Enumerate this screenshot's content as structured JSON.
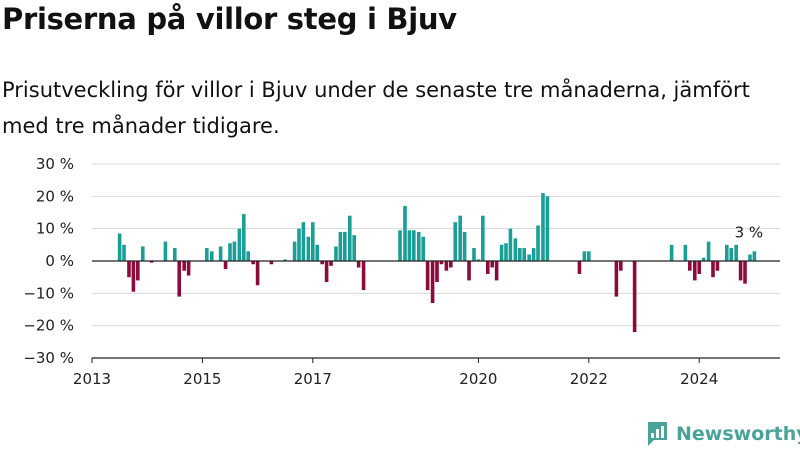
{
  "header": {
    "title": "Priserna på villor steg i Bjuv",
    "subtitle": "Prisutveckling för villor i Bjuv under de senaste tre månaderna, jämfört med tre månader tidigare."
  },
  "brand": {
    "name": "Newsworthy",
    "icon": "newsworthy-logo-icon",
    "color": "#4aa399"
  },
  "chart_data": {
    "type": "bar",
    "title": "",
    "xlabel": "",
    "ylabel": "",
    "x_axis": {
      "type": "time",
      "range": [
        2013.0,
        2025.7
      ],
      "tick_labels": [
        "2013",
        "2015",
        "2017",
        "2020",
        "2022",
        "2024"
      ],
      "tick_positions": [
        2013,
        2015,
        2017,
        2020,
        2022,
        2024
      ]
    },
    "y_axis": {
      "range": [
        -30,
        30
      ],
      "ticks": [
        -30,
        -20,
        -10,
        0,
        10,
        20,
        30
      ],
      "tick_labels": [
        "−30 %",
        "−20 %",
        "−10 %",
        "0 %",
        "10 %",
        "20 %",
        "30 %"
      ],
      "grid": true
    },
    "colors": {
      "positive": "#1a9e96",
      "negative": "#8c0a3c"
    },
    "annotation": {
      "text": "3 %",
      "x": 2024.9,
      "y": 3
    },
    "series": [
      {
        "values": [
          {
            "x": 2013.5,
            "y": 8.5
          },
          {
            "x": 2013.58,
            "y": 5
          },
          {
            "x": 2013.67,
            "y": -5
          },
          {
            "x": 2013.75,
            "y": -9.5
          },
          {
            "x": 2013.83,
            "y": -6
          },
          {
            "x": 2013.92,
            "y": 4.5
          },
          {
            "x": 2014.08,
            "y": -0.5
          },
          {
            "x": 2014.33,
            "y": 6
          },
          {
            "x": 2014.5,
            "y": 4
          },
          {
            "x": 2014.58,
            "y": -11
          },
          {
            "x": 2014.67,
            "y": -3
          },
          {
            "x": 2014.75,
            "y": -4.5
          },
          {
            "x": 2015.08,
            "y": 4
          },
          {
            "x": 2015.17,
            "y": 3
          },
          {
            "x": 2015.33,
            "y": 4.5
          },
          {
            "x": 2015.42,
            "y": -2.5
          },
          {
            "x": 2015.5,
            "y": 5.5
          },
          {
            "x": 2015.58,
            "y": 6
          },
          {
            "x": 2015.67,
            "y": 10
          },
          {
            "x": 2015.75,
            "y": 14.5
          },
          {
            "x": 2015.83,
            "y": 3
          },
          {
            "x": 2015.92,
            "y": -1
          },
          {
            "x": 2016.0,
            "y": -7.5
          },
          {
            "x": 2016.25,
            "y": -1
          },
          {
            "x": 2016.5,
            "y": 0.5
          },
          {
            "x": 2016.67,
            "y": 6
          },
          {
            "x": 2016.75,
            "y": 10
          },
          {
            "x": 2016.83,
            "y": 12
          },
          {
            "x": 2016.92,
            "y": 7.5
          },
          {
            "x": 2017.0,
            "y": 12
          },
          {
            "x": 2017.08,
            "y": 5
          },
          {
            "x": 2017.17,
            "y": -1
          },
          {
            "x": 2017.25,
            "y": -6.5
          },
          {
            "x": 2017.33,
            "y": -1.5
          },
          {
            "x": 2017.42,
            "y": 4.5
          },
          {
            "x": 2017.5,
            "y": 9
          },
          {
            "x": 2017.58,
            "y": 9
          },
          {
            "x": 2017.67,
            "y": 14
          },
          {
            "x": 2017.75,
            "y": 8
          },
          {
            "x": 2017.83,
            "y": -2
          },
          {
            "x": 2017.92,
            "y": -9
          },
          {
            "x": 2018.58,
            "y": 9.5
          },
          {
            "x": 2018.67,
            "y": 17
          },
          {
            "x": 2018.75,
            "y": 9.5
          },
          {
            "x": 2018.83,
            "y": 9.5
          },
          {
            "x": 2018.92,
            "y": 9
          },
          {
            "x": 2019.0,
            "y": 7.5
          },
          {
            "x": 2019.08,
            "y": -9
          },
          {
            "x": 2019.17,
            "y": -13
          },
          {
            "x": 2019.25,
            "y": -6.5
          },
          {
            "x": 2019.33,
            "y": -1
          },
          {
            "x": 2019.42,
            "y": -3
          },
          {
            "x": 2019.5,
            "y": -2
          },
          {
            "x": 2019.58,
            "y": 12
          },
          {
            "x": 2019.67,
            "y": 14
          },
          {
            "x": 2019.75,
            "y": 9
          },
          {
            "x": 2019.83,
            "y": -6
          },
          {
            "x": 2019.92,
            "y": 4
          },
          {
            "x": 2020.0,
            "y": 0.5
          },
          {
            "x": 2020.08,
            "y": 14
          },
          {
            "x": 2020.17,
            "y": -4
          },
          {
            "x": 2020.25,
            "y": -2
          },
          {
            "x": 2020.33,
            "y": -6
          },
          {
            "x": 2020.42,
            "y": 5
          },
          {
            "x": 2020.5,
            "y": 5.5
          },
          {
            "x": 2020.58,
            "y": 10
          },
          {
            "x": 2020.67,
            "y": 7
          },
          {
            "x": 2020.75,
            "y": 4
          },
          {
            "x": 2020.83,
            "y": 4
          },
          {
            "x": 2020.92,
            "y": 2
          },
          {
            "x": 2021.0,
            "y": 4
          },
          {
            "x": 2021.08,
            "y": 11
          },
          {
            "x": 2021.17,
            "y": 21
          },
          {
            "x": 2021.25,
            "y": 20
          },
          {
            "x": 2021.83,
            "y": -4
          },
          {
            "x": 2021.92,
            "y": 3
          },
          {
            "x": 2022.0,
            "y": 3
          },
          {
            "x": 2022.5,
            "y": -11
          },
          {
            "x": 2022.58,
            "y": -3
          },
          {
            "x": 2022.83,
            "y": -22
          },
          {
            "x": 2023.5,
            "y": 5
          },
          {
            "x": 2023.75,
            "y": 5
          },
          {
            "x": 2023.83,
            "y": -3
          },
          {
            "x": 2023.92,
            "y": -6
          },
          {
            "x": 2024.0,
            "y": -4
          },
          {
            "x": 2024.08,
            "y": 1
          },
          {
            "x": 2024.17,
            "y": 6
          },
          {
            "x": 2024.25,
            "y": -5
          },
          {
            "x": 2024.33,
            "y": -3
          },
          {
            "x": 2024.5,
            "y": 5
          },
          {
            "x": 2024.58,
            "y": 4
          },
          {
            "x": 2024.67,
            "y": 5
          },
          {
            "x": 2024.75,
            "y": -6
          },
          {
            "x": 2024.83,
            "y": -7
          },
          {
            "x": 2024.92,
            "y": 2
          },
          {
            "x": 2025.0,
            "y": 3
          }
        ]
      }
    ]
  }
}
